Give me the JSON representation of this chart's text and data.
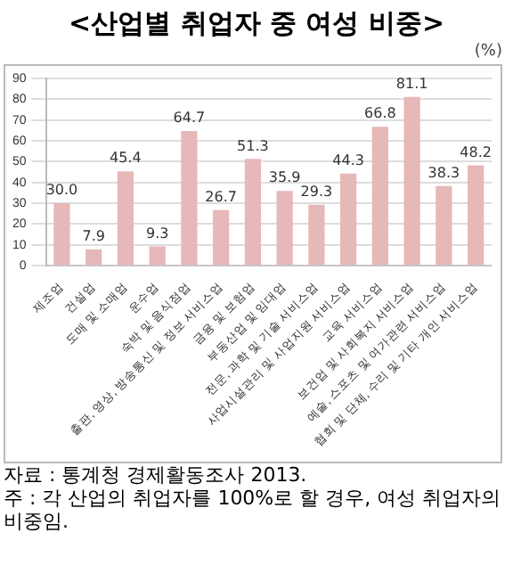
{
  "chart_data": {
    "type": "bar",
    "title": "<산업별 취업자 중 여성 비중>",
    "ylabel": "(%)",
    "categories": [
      "제조업",
      "건설업",
      "도매 및 소매업",
      "운수업",
      "숙박 및 음식점업",
      "출판, 영상, 방송통신 및 정보 서비스업",
      "금융 및 보험업",
      "부동산업 및 임대업",
      "전문, 과학 및 기술 서비스업",
      "사업시설관리 및 사업지원 서비스업",
      "교육 서비스업",
      "보건업 및 사회복지 서비스업",
      "예술, 스포츠 및 여가관련 서비스업",
      "협회 및 단체, 수리 및 기타 개인 서비스업"
    ],
    "values": [
      30.0,
      7.9,
      45.4,
      9.3,
      64.7,
      26.7,
      51.3,
      35.9,
      29.3,
      44.3,
      66.8,
      81.1,
      38.3,
      48.2
    ],
    "value_labels": [
      "30.0",
      "7.9",
      "45.4",
      "9.3",
      "64.7",
      "26.7",
      "51.3",
      "35.9",
      "29.3",
      "44.3",
      "66.8",
      "81.1",
      "38.3",
      "48.2"
    ],
    "color": "#e6b8b7",
    "ylim": [
      0,
      90
    ],
    "yticks": [
      0,
      10,
      20,
      30,
      40,
      50,
      60,
      70,
      80,
      90
    ],
    "grid": "y",
    "annotations": [
      "자료 : 통계청 경제활동조사 2013.",
      "주 : 각 산업의 취업자를 100%로 할 경우, 여성 취업자의 비중임."
    ]
  }
}
